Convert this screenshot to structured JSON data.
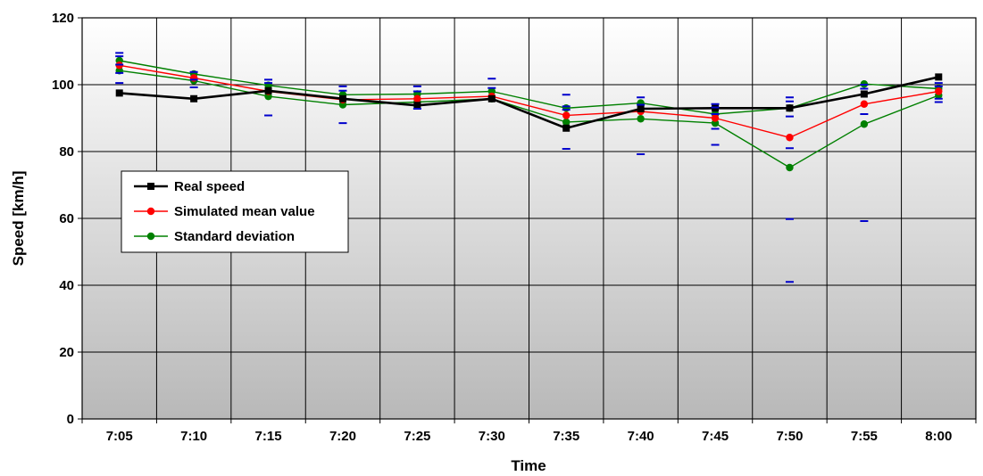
{
  "chart_data": {
    "type": "line",
    "xlabel": "Time",
    "ylabel": "Speed  [km/h]",
    "ylim": [
      0,
      120
    ],
    "yticks": [
      0,
      20,
      40,
      60,
      80,
      100,
      120
    ],
    "categories": [
      "7:05",
      "7:10",
      "7:15",
      "7:20",
      "7:25",
      "7:30",
      "7:35",
      "7:40",
      "7:45",
      "7:50",
      "7:55",
      "8:00"
    ],
    "grid": true,
    "legend_position": "left-middle",
    "series": [
      {
        "name": "Real speed",
        "color": "#000000",
        "marker": "square",
        "values": [
          97.5,
          95.8,
          98.2,
          95.8,
          93.8,
          95.8,
          87.0,
          92.8,
          93.0,
          93.0,
          97.2,
          102.3
        ]
      },
      {
        "name": "Simulated mean value",
        "color": "#ff0000",
        "marker": "circle",
        "values": [
          105.8,
          102.0,
          98.0,
          95.5,
          95.8,
          96.5,
          90.8,
          92.0,
          90.0,
          84.2,
          94.2,
          98.0
        ]
      },
      {
        "name": "Standard deviation",
        "color": "#008000",
        "marker": "circle",
        "show_in_legend": true,
        "values": [
          107.2,
          103.2,
          99.8,
          97.0,
          97.2,
          98.0,
          93.0,
          94.5,
          91.2,
          93.0,
          100.2,
          98.8
        ]
      },
      {
        "name": "",
        "color": "#008000",
        "marker": "circle",
        "show_in_legend": false,
        "values": [
          104.2,
          101.2,
          96.5,
          94.0,
          94.8,
          95.8,
          88.8,
          89.8,
          88.5,
          75.2,
          88.2,
          96.8
        ]
      }
    ],
    "range_markers": {
      "color": "#0000cc",
      "values": [
        [
          109.5,
          108.5,
          106.0,
          103.5,
          100.5
        ],
        [
          103.8,
          101.5,
          99.2
        ],
        [
          101.5,
          100.5,
          90.8
        ],
        [
          99.5,
          98.2,
          88.5
        ],
        [
          99.5,
          98.0,
          92.8
        ],
        [
          101.8,
          99.0
        ],
        [
          97.0,
          93.5,
          92.5,
          80.8
        ],
        [
          96.2,
          94.0,
          79.2
        ],
        [
          94.2,
          93.2,
          91.2,
          86.8,
          82.0
        ],
        [
          96.2,
          95.0,
          90.5,
          81.0,
          59.8,
          41.0
        ],
        [
          100.0,
          98.8,
          91.2,
          59.2
        ],
        [
          100.5,
          99.5,
          95.8,
          94.8
        ]
      ]
    }
  }
}
